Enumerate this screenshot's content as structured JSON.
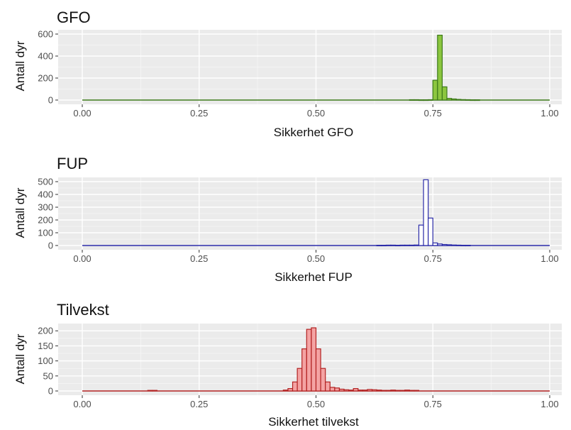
{
  "chart_data": [
    {
      "type": "bar",
      "title": "GFO",
      "xlabel": "Sikkerhet GFO",
      "ylabel": "Antall dyr",
      "xlim": [
        0,
        1
      ],
      "ylim": [
        0,
        600
      ],
      "xticks": [
        "0.00",
        "0.25",
        "0.50",
        "0.75",
        "1.00"
      ],
      "yticks": [
        "0",
        "200",
        "400",
        "600"
      ],
      "grid": true,
      "fill": "#8cc63f",
      "edge": "#3d7a1a",
      "bins": [
        {
          "x": 0.705,
          "y": 3
        },
        {
          "x": 0.715,
          "y": 3
        },
        {
          "x": 0.725,
          "y": 2
        },
        {
          "x": 0.735,
          "y": 2
        },
        {
          "x": 0.745,
          "y": 3
        },
        {
          "x": 0.755,
          "y": 180
        },
        {
          "x": 0.765,
          "y": 590
        },
        {
          "x": 0.775,
          "y": 120
        },
        {
          "x": 0.785,
          "y": 15
        },
        {
          "x": 0.795,
          "y": 10
        },
        {
          "x": 0.805,
          "y": 6
        },
        {
          "x": 0.815,
          "y": 4
        },
        {
          "x": 0.825,
          "y": 3
        },
        {
          "x": 0.835,
          "y": 2
        },
        {
          "x": 0.845,
          "y": 2
        }
      ]
    },
    {
      "type": "bar",
      "title": "FUP",
      "xlabel": "Sikkerhet FUP",
      "ylabel": "Antall dyr",
      "xlim": [
        0,
        1
      ],
      "ylim": [
        0,
        500
      ],
      "xticks": [
        "0.00",
        "0.25",
        "0.50",
        "0.75",
        "1.00"
      ],
      "yticks": [
        "0",
        "100",
        "200",
        "300",
        "400",
        "500"
      ],
      "grid": true,
      "fill": "#ffffff",
      "edge": "#2b2ba8",
      "bins": [
        {
          "x": 0.635,
          "y": 2
        },
        {
          "x": 0.645,
          "y": 2
        },
        {
          "x": 0.655,
          "y": 3
        },
        {
          "x": 0.665,
          "y": 3
        },
        {
          "x": 0.675,
          "y": 2
        },
        {
          "x": 0.685,
          "y": 3
        },
        {
          "x": 0.695,
          "y": 3
        },
        {
          "x": 0.705,
          "y": 3
        },
        {
          "x": 0.715,
          "y": 4
        },
        {
          "x": 0.725,
          "y": 160
        },
        {
          "x": 0.735,
          "y": 515
        },
        {
          "x": 0.745,
          "y": 215
        },
        {
          "x": 0.755,
          "y": 20
        },
        {
          "x": 0.765,
          "y": 12
        },
        {
          "x": 0.775,
          "y": 8
        },
        {
          "x": 0.785,
          "y": 6
        },
        {
          "x": 0.795,
          "y": 4
        },
        {
          "x": 0.805,
          "y": 3
        },
        {
          "x": 0.815,
          "y": 2
        },
        {
          "x": 0.825,
          "y": 2
        }
      ]
    },
    {
      "type": "bar",
      "title": "Tilvekst",
      "xlabel": "Sikkerhet tilvekst",
      "ylabel": "Antall dyr",
      "xlim": [
        0,
        1
      ],
      "ylim": [
        0,
        210
      ],
      "xticks": [
        "0.00",
        "0.25",
        "0.50",
        "0.75",
        "1.00"
      ],
      "yticks": [
        "0",
        "50",
        "100",
        "150",
        "200"
      ],
      "grid": true,
      "fill": "#f4a3a3",
      "edge": "#b22222",
      "bins": [
        {
          "x": 0.145,
          "y": 2
        },
        {
          "x": 0.155,
          "y": 2
        },
        {
          "x": 0.435,
          "y": 3
        },
        {
          "x": 0.445,
          "y": 8
        },
        {
          "x": 0.455,
          "y": 30
        },
        {
          "x": 0.465,
          "y": 75
        },
        {
          "x": 0.475,
          "y": 140
        },
        {
          "x": 0.485,
          "y": 205
        },
        {
          "x": 0.495,
          "y": 210
        },
        {
          "x": 0.505,
          "y": 140
        },
        {
          "x": 0.515,
          "y": 75
        },
        {
          "x": 0.525,
          "y": 30
        },
        {
          "x": 0.535,
          "y": 12
        },
        {
          "x": 0.545,
          "y": 10
        },
        {
          "x": 0.555,
          "y": 6
        },
        {
          "x": 0.565,
          "y": 4
        },
        {
          "x": 0.575,
          "y": 3
        },
        {
          "x": 0.585,
          "y": 8
        },
        {
          "x": 0.595,
          "y": 3
        },
        {
          "x": 0.605,
          "y": 3
        },
        {
          "x": 0.615,
          "y": 5
        },
        {
          "x": 0.625,
          "y": 4
        },
        {
          "x": 0.635,
          "y": 3
        },
        {
          "x": 0.645,
          "y": 2
        },
        {
          "x": 0.655,
          "y": 2
        },
        {
          "x": 0.665,
          "y": 3
        },
        {
          "x": 0.675,
          "y": 2
        },
        {
          "x": 0.685,
          "y": 2
        },
        {
          "x": 0.695,
          "y": 3
        },
        {
          "x": 0.705,
          "y": 2
        },
        {
          "x": 0.715,
          "y": 2
        }
      ]
    }
  ]
}
